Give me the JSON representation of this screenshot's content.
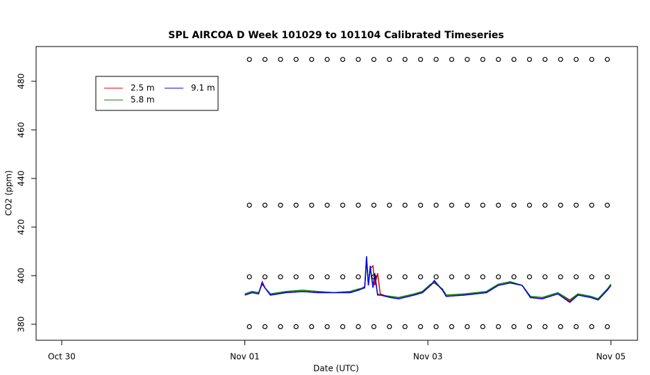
{
  "chart_data": {
    "type": "line",
    "title": "SPL AIRCOA D  Week 101029 to 101104  Calibrated Timeseries",
    "xlabel": "Date (UTC)",
    "ylabel": "CO2 (ppm)",
    "xlim": [
      -1.28,
      5.29
    ],
    "ylim": [
      373.4,
      494.3
    ],
    "xticks": [
      {
        "value": -1,
        "label": "Oct 30"
      },
      {
        "value": 1,
        "label": "Nov 01"
      },
      {
        "value": 3,
        "label": "Nov 03"
      },
      {
        "value": 5,
        "label": "Nov 05"
      }
    ],
    "yticks": [
      380,
      400,
      420,
      440,
      460,
      480
    ],
    "legend": "topleft",
    "series": [
      {
        "name": "2.5 m",
        "color": "#e00000",
        "type": "line",
        "x": [
          1.0,
          1.08,
          1.15,
          1.19,
          1.22,
          1.28,
          1.45,
          1.63,
          1.8,
          1.97,
          2.15,
          2.24,
          2.31,
          2.33,
          2.35,
          2.37,
          2.4,
          2.42,
          2.45,
          2.48,
          2.59,
          2.68,
          2.85,
          2.94,
          3.03,
          3.07,
          3.16,
          3.2,
          3.4,
          3.64,
          3.77,
          3.9,
          4.03,
          4.12,
          4.25,
          4.42,
          4.55,
          4.64,
          4.78,
          4.86,
          4.96,
          5.0
        ],
        "values": [
          392,
          393,
          392.5,
          397.5,
          395,
          392,
          393,
          393.5,
          393,
          393,
          393,
          394,
          395.5,
          407,
          396,
          403,
          404,
          396,
          401,
          392.5,
          391,
          390.5,
          392,
          393,
          396,
          397.5,
          394,
          391.5,
          392,
          393,
          396,
          397,
          396,
          391,
          390.5,
          392.5,
          389.5,
          392,
          391,
          390,
          394,
          396
        ]
      },
      {
        "name": "5.8 m",
        "color": "#008000",
        "type": "line",
        "x": [
          1.0,
          1.08,
          1.15,
          1.19,
          1.22,
          1.28,
          1.45,
          1.63,
          1.8,
          1.97,
          2.15,
          2.24,
          2.31,
          2.33,
          2.35,
          2.37,
          2.4,
          2.42,
          2.45,
          2.48,
          2.59,
          2.68,
          2.85,
          2.94,
          3.03,
          3.07,
          3.16,
          3.2,
          3.4,
          3.64,
          3.77,
          3.9,
          4.03,
          4.12,
          4.25,
          4.42,
          4.55,
          4.64,
          4.78,
          4.86,
          4.96,
          5.0
        ],
        "values": [
          392.5,
          393.5,
          393,
          396.5,
          395,
          392.5,
          393.5,
          394,
          393.5,
          393,
          393.5,
          394.5,
          395,
          406,
          396.5,
          403,
          395.5,
          400,
          392.5,
          392,
          391.5,
          391,
          392.5,
          393.5,
          396.5,
          397,
          394.5,
          392,
          392.5,
          393.5,
          396.5,
          397.5,
          396,
          391.5,
          391,
          393,
          390,
          392.5,
          391.5,
          390.5,
          394.5,
          396.5
        ]
      },
      {
        "name": "9.1 m",
        "color": "#0000ee",
        "type": "line",
        "x": [
          1.0,
          1.08,
          1.15,
          1.19,
          1.22,
          1.28,
          1.45,
          1.63,
          1.8,
          1.97,
          2.15,
          2.24,
          2.31,
          2.33,
          2.35,
          2.37,
          2.4,
          2.42,
          2.45,
          2.48,
          2.59,
          2.68,
          2.85,
          2.94,
          3.03,
          3.07,
          3.16,
          3.2,
          3.4,
          3.64,
          3.77,
          3.9,
          4.03,
          4.12,
          4.25,
          4.42,
          4.55,
          4.64,
          4.78,
          4.86,
          4.96,
          5.0
        ],
        "values": [
          392,
          393,
          392.5,
          397,
          395,
          392,
          393,
          393.5,
          393,
          393,
          393,
          394,
          395,
          408,
          396,
          404,
          395,
          401,
          392,
          392,
          391,
          390.5,
          392,
          393,
          396,
          398,
          394,
          391.5,
          392,
          393,
          396,
          397,
          396,
          391,
          390.5,
          392.5,
          389,
          392,
          391,
          390,
          394,
          396
        ]
      },
      {
        "type": "points",
        "color": "#000000",
        "x": [
          1.05,
          1.22,
          1.39,
          1.56,
          1.73,
          1.9,
          2.07,
          2.24,
          2.41,
          2.58,
          2.75,
          2.92,
          3.09,
          3.26,
          3.43,
          3.6,
          3.77,
          3.94,
          4.11,
          4.28,
          4.45,
          4.62,
          4.79,
          4.96
        ],
        "values": [
          489,
          489,
          489,
          489,
          489,
          489,
          489,
          489,
          489,
          489,
          489,
          489,
          489,
          489,
          489,
          489,
          489,
          489,
          489,
          489,
          489,
          489,
          489,
          489
        ]
      },
      {
        "type": "points",
        "color": "#000000",
        "x": [
          1.05,
          1.22,
          1.39,
          1.56,
          1.73,
          1.9,
          2.07,
          2.24,
          2.41,
          2.58,
          2.75,
          2.92,
          3.09,
          3.26,
          3.43,
          3.6,
          3.77,
          3.94,
          4.11,
          4.28,
          4.45,
          4.62,
          4.79,
          4.96
        ],
        "values": [
          429,
          429,
          429,
          429,
          429,
          429,
          429,
          429,
          429,
          429,
          429,
          429,
          429,
          429,
          429,
          429,
          429,
          429,
          429,
          429,
          429,
          429,
          429,
          429
        ]
      },
      {
        "type": "points",
        "color": "#000000",
        "x": [
          1.05,
          1.22,
          1.39,
          1.56,
          1.73,
          1.9,
          2.07,
          2.24,
          2.41,
          2.58,
          2.75,
          2.92,
          3.09,
          3.26,
          3.43,
          3.6,
          3.77,
          3.94,
          4.11,
          4.28,
          4.45,
          4.62,
          4.79,
          4.96
        ],
        "values": [
          399.5,
          399.5,
          399.5,
          399.5,
          399.5,
          399.5,
          399.5,
          399.5,
          399.5,
          399.5,
          399.5,
          399.5,
          399.5,
          399.5,
          399.5,
          399.5,
          399.5,
          399.5,
          399.5,
          399.5,
          399.5,
          399.5,
          399.5,
          399.5
        ]
      },
      {
        "type": "points",
        "color": "#000000",
        "x": [
          1.05,
          1.22,
          1.39,
          1.56,
          1.73,
          1.9,
          2.07,
          2.24,
          2.41,
          2.58,
          2.75,
          2.92,
          3.09,
          3.26,
          3.43,
          3.6,
          3.77,
          3.94,
          4.11,
          4.28,
          4.45,
          4.62,
          4.79,
          4.96
        ],
        "values": [
          379,
          379,
          379,
          379,
          379,
          379,
          379,
          379,
          379,
          379,
          379,
          379,
          379,
          379,
          379,
          379,
          379,
          379,
          379,
          379,
          379,
          379,
          379,
          379
        ]
      }
    ]
  }
}
